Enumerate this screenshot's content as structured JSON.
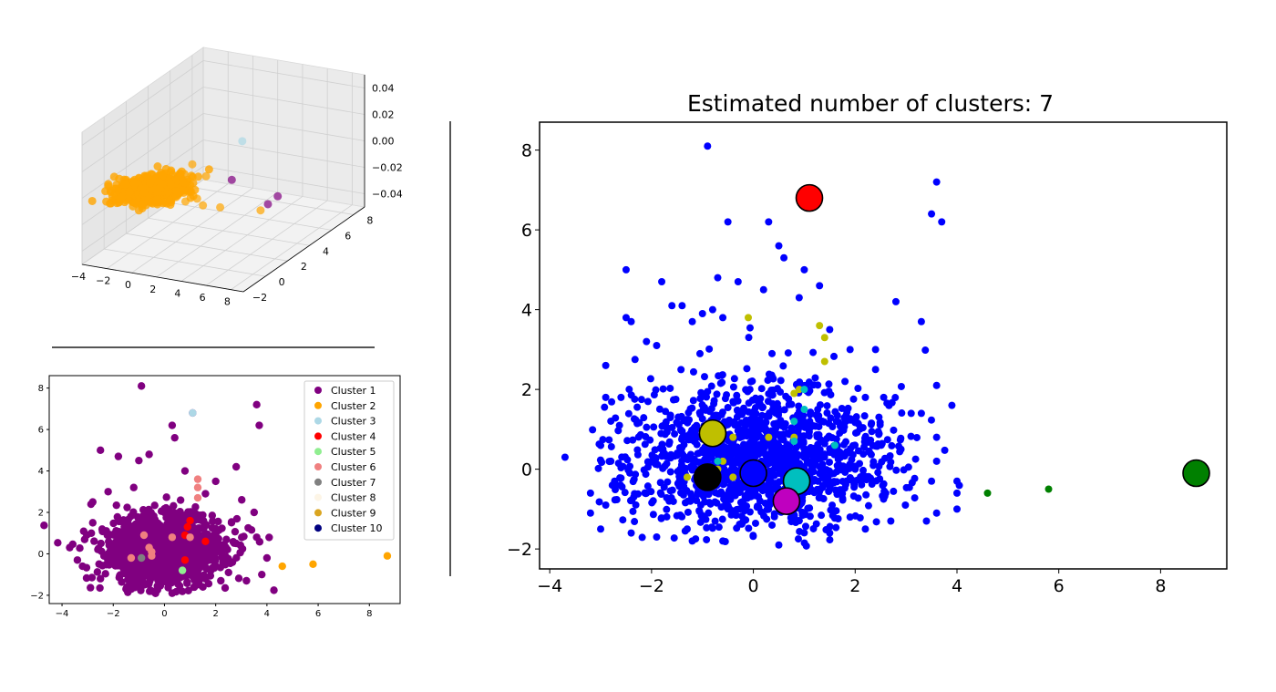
{
  "chart_data": [
    {
      "id": "plot3d",
      "type": "scatter",
      "projection": "3d",
      "x_ticks": [
        "−4",
        "−2",
        "0",
        "2",
        "4",
        "6",
        "8"
      ],
      "y_ticks": [
        "−2",
        "0",
        "2",
        "4",
        "6",
        "8"
      ],
      "z_ticks": [
        "0.04",
        "0.02",
        "0.00",
        "−0.02",
        "−0.04"
      ],
      "xlim": [
        -4,
        9
      ],
      "ylim": [
        -2,
        9
      ],
      "zlim": [
        -0.05,
        0.05
      ],
      "grid": true,
      "series": [
        {
          "color": "#FFA500",
          "points": [
            [
              -2.5,
              0.2,
              0
            ],
            [
              -2,
              0.5,
              0
            ],
            [
              -1.5,
              -0.5,
              0
            ],
            [
              -1,
              0.8,
              0
            ],
            [
              -0.5,
              -0.3,
              0
            ],
            [
              0,
              0.2,
              0
            ],
            [
              0.5,
              1.0,
              0
            ],
            [
              1,
              -0.8,
              0
            ],
            [
              1.5,
              0.4,
              0
            ],
            [
              2,
              -0.2,
              0
            ],
            [
              2.5,
              0.6,
              0
            ],
            [
              3,
              -0.5,
              0
            ],
            [
              -1,
              2.0,
              0
            ],
            [
              0,
              3.5,
              0
            ],
            [
              1,
              1.5,
              0
            ],
            [
              2,
              2.5,
              0
            ],
            [
              -1.5,
              -1.2,
              0
            ],
            [
              0.5,
              -1.5,
              0
            ],
            [
              3.5,
              0,
              0
            ],
            [
              4.5,
              -0.6,
              0
            ],
            [
              5.8,
              -0.5,
              0
            ],
            [
              8.7,
              -0.1,
              0
            ]
          ]
        },
        {
          "color": "#ADD8E6",
          "points": [
            [
              1.1,
              6.8,
              0
            ]
          ]
        },
        {
          "color": "#800080",
          "points": [
            [
              -0.9,
              8.1,
              -0.04
            ],
            [
              3.6,
              7.2,
              -0.04
            ],
            [
              3.7,
              6.2,
              -0.04
            ]
          ]
        }
      ]
    },
    {
      "id": "plot_clusters10",
      "type": "scatter",
      "xlim": [
        -4.5,
        9.2
      ],
      "ylim": [
        -2.4,
        8.6
      ],
      "x_ticks": [
        -4,
        -2,
        0,
        2,
        4,
        6,
        8
      ],
      "y_ticks": [
        -2,
        0,
        2,
        4,
        6,
        8
      ],
      "legend_placement": "upper right",
      "series": [
        {
          "name": "Cluster 1",
          "color": "#800080",
          "points": [
            [
              -0.9,
              8.1
            ],
            [
              3.6,
              7.2
            ],
            [
              3.7,
              6.2
            ],
            [
              0.3,
              6.2
            ],
            [
              -2.5,
              5.0
            ],
            [
              1.1,
              6.8
            ],
            [
              -1.8,
              4.7
            ],
            [
              0.4,
              5.6
            ],
            [
              -0.6,
              4.8
            ],
            [
              2.8,
              4.2
            ],
            [
              -3.7,
              0.3
            ],
            [
              -3.2,
              -0.6
            ],
            [
              -2.8,
              1.5
            ],
            [
              3.8,
              -1.0
            ],
            [
              3.2,
              -1.3
            ],
            [
              4.0,
              -0.2
            ],
            [
              3.5,
              2.0
            ],
            [
              -2.5,
              -1.2
            ],
            [
              1.5,
              -1.6
            ],
            [
              -0.5,
              -1.8
            ],
            [
              0.3,
              -1.9
            ],
            [
              2.2,
              -1.3
            ],
            [
              2.8,
              0.5
            ],
            [
              -1.2,
              3.2
            ],
            [
              -3.4,
              -0.3
            ],
            [
              3.6,
              0.8
            ],
            [
              2.0,
              3.5
            ],
            [
              -2.2,
              3.0
            ],
            [
              -1.0,
              4.5
            ],
            [
              0.8,
              4.0
            ],
            [
              1.6,
              2.9
            ],
            [
              -2.8,
              2.5
            ],
            [
              -1.5,
              -1.7
            ],
            [
              0.0,
              2.0
            ],
            [
              -0.8,
              -1.5
            ],
            [
              2.5,
              -0.9
            ]
          ]
        },
        {
          "name": "Cluster 2",
          "color": "#FFA500",
          "points": [
            [
              4.6,
              -0.6
            ],
            [
              5.8,
              -0.5
            ],
            [
              8.7,
              -0.1
            ]
          ]
        },
        {
          "name": "Cluster 3",
          "color": "#ADD8E6",
          "points": [
            [
              1.1,
              6.8
            ]
          ]
        },
        {
          "name": "Cluster 4",
          "color": "#FF0000",
          "points": [
            [
              1.0,
              1.6
            ],
            [
              0.9,
              1.3
            ],
            [
              0.8,
              0.9
            ],
            [
              1.6,
              0.6
            ],
            [
              0.8,
              -0.3
            ]
          ]
        },
        {
          "name": "Cluster 5",
          "color": "#90EE90",
          "points": [
            [
              0.7,
              -0.8
            ]
          ]
        },
        {
          "name": "Cluster 6",
          "color": "#F08080",
          "points": [
            [
              -1.3,
              -0.2
            ],
            [
              -0.8,
              0.9
            ],
            [
              -0.6,
              0.3
            ],
            [
              -0.5,
              0.1
            ],
            [
              0.3,
              0.8
            ],
            [
              1.0,
              0.8
            ],
            [
              1.3,
              3.6
            ],
            [
              1.3,
              2.7
            ],
            [
              1.3,
              3.2
            ],
            [
              -0.5,
              -0.1
            ]
          ]
        },
        {
          "name": "Cluster 7",
          "color": "#808080",
          "points": [
            [
              -0.9,
              -0.2
            ]
          ]
        },
        {
          "name": "Cluster 8",
          "color": "#FDF5E6",
          "points": []
        },
        {
          "name": "Cluster 9",
          "color": "#DAA520",
          "points": []
        },
        {
          "name": "Cluster 10",
          "color": "#000080",
          "points": []
        }
      ]
    },
    {
      "id": "plot_meanshift",
      "type": "scatter",
      "title": "Estimated number of clusters: 7",
      "xlim": [
        -4.2,
        9.3
      ],
      "ylim": [
        -2.5,
        8.7
      ],
      "x_ticks": [
        -4,
        -2,
        0,
        2,
        4,
        6,
        8
      ],
      "y_ticks": [
        -2,
        0,
        2,
        4,
        6,
        8
      ],
      "blue_color": "#0000FF",
      "blue_outliers": [
        [
          -0.9,
          8.1
        ],
        [
          0.3,
          6.2
        ],
        [
          3.6,
          7.2
        ],
        [
          3.7,
          6.2
        ],
        [
          3.5,
          6.4
        ],
        [
          -2.5,
          5.0
        ],
        [
          -1.8,
          4.7
        ],
        [
          -0.7,
          4.8
        ],
        [
          -0.3,
          4.7
        ],
        [
          0.5,
          5.6
        ],
        [
          0.6,
          5.3
        ],
        [
          1.3,
          4.6
        ],
        [
          2.8,
          4.2
        ],
        [
          3.3,
          3.7
        ],
        [
          -3.7,
          0.3
        ],
        [
          -3.2,
          -0.6
        ],
        [
          -3.2,
          -1.1
        ],
        [
          -2.9,
          -0.9
        ],
        [
          -2.9,
          1.8
        ],
        [
          -2.9,
          2.6
        ],
        [
          -2.6,
          1.8
        ],
        [
          -2.5,
          3.8
        ],
        [
          -2.4,
          3.7
        ],
        [
          -2.1,
          3.2
        ],
        [
          -1.9,
          3.1
        ],
        [
          -1.6,
          4.1
        ],
        [
          -1.4,
          4.1
        ],
        [
          -1.2,
          3.7
        ],
        [
          -1.0,
          3.9
        ],
        [
          -0.8,
          4.0
        ],
        [
          -0.6,
          3.8
        ],
        [
          0.2,
          4.5
        ],
        [
          0.9,
          4.3
        ],
        [
          1.5,
          3.5
        ],
        [
          1.9,
          3.0
        ],
        [
          2.4,
          3.0
        ],
        [
          2.4,
          2.5
        ],
        [
          3.1,
          1.4
        ],
        [
          3.6,
          2.1
        ],
        [
          3.9,
          1.6
        ],
        [
          3.3,
          1.4
        ],
        [
          3.6,
          0.8
        ],
        [
          3.6,
          0.2
        ],
        [
          4.0,
          -0.3
        ],
        [
          3.5,
          -0.3
        ],
        [
          3.4,
          -1.3
        ],
        [
          3.6,
          -1.1
        ],
        [
          4.0,
          -0.6
        ],
        [
          4.0,
          -1.0
        ],
        [
          2.7,
          -1.3
        ],
        [
          2.2,
          -1.5
        ],
        [
          1.5,
          -1.6
        ],
        [
          0.5,
          -1.9
        ],
        [
          -0.6,
          -1.8
        ],
        [
          -1.2,
          -1.8
        ],
        [
          -1.9,
          -1.7
        ],
        [
          -2.4,
          -1.6
        ],
        [
          -3.0,
          -1.5
        ],
        [
          2.9,
          0.5
        ],
        [
          2.6,
          -0.6
        ],
        [
          1.9,
          -1.2
        ],
        [
          -2.8,
          0.2
        ],
        [
          -2.1,
          -0.6
        ],
        [
          -0.5,
          6.2
        ],
        [
          1.0,
          5.0
        ],
        [
          -1.3,
          -1.5
        ],
        [
          2.2,
          1.8
        ],
        [
          1.8,
          2.2
        ]
      ],
      "blue_cloud": {
        "center": [
          0,
          0.3
        ],
        "spread": [
          1.3,
          0.9
        ],
        "count": 1500
      },
      "small_points": [
        {
          "color": "#BFBF00",
          "points": [
            [
              -0.1,
              3.8
            ],
            [
              1.3,
              3.6
            ],
            [
              1.4,
              3.3
            ],
            [
              1.4,
              2.7
            ],
            [
              0.9,
              2.0
            ],
            [
              -0.4,
              0.8
            ],
            [
              -0.6,
              0.2
            ],
            [
              -0.4,
              -0.2
            ],
            [
              -0.7,
              0.0
            ],
            [
              -1.3,
              -0.2
            ],
            [
              0.3,
              0.8
            ],
            [
              0.8,
              0.8
            ],
            [
              0.8,
              1.9
            ]
          ]
        },
        {
          "color": "#00BFBF",
          "points": [
            [
              0.8,
              1.2
            ],
            [
              1.0,
              1.5
            ],
            [
              1.6,
              0.6
            ],
            [
              1.0,
              2.0
            ],
            [
              0.8,
              0.7
            ],
            [
              -0.7,
              0.2
            ]
          ]
        },
        {
          "color": "#008000",
          "points": [
            [
              4.6,
              -0.6
            ],
            [
              5.8,
              -0.5
            ]
          ]
        }
      ],
      "centers": [
        {
          "label": "red",
          "x": 1.1,
          "y": 6.8,
          "fill": "#FF0000"
        },
        {
          "label": "yellow",
          "x": -0.8,
          "y": 0.9,
          "fill": "#BFBF00"
        },
        {
          "label": "black",
          "x": -0.9,
          "y": -0.2,
          "fill": "#000000"
        },
        {
          "label": "blue",
          "x": 0.0,
          "y": -0.1,
          "fill": "#0000FF"
        },
        {
          "label": "cyan",
          "x": 0.85,
          "y": -0.3,
          "fill": "#00BFBF"
        },
        {
          "label": "magenta",
          "x": 0.65,
          "y": -0.8,
          "fill": "#BF00BF"
        },
        {
          "label": "green",
          "x": 8.7,
          "y": -0.1,
          "fill": "#008000"
        }
      ]
    }
  ]
}
